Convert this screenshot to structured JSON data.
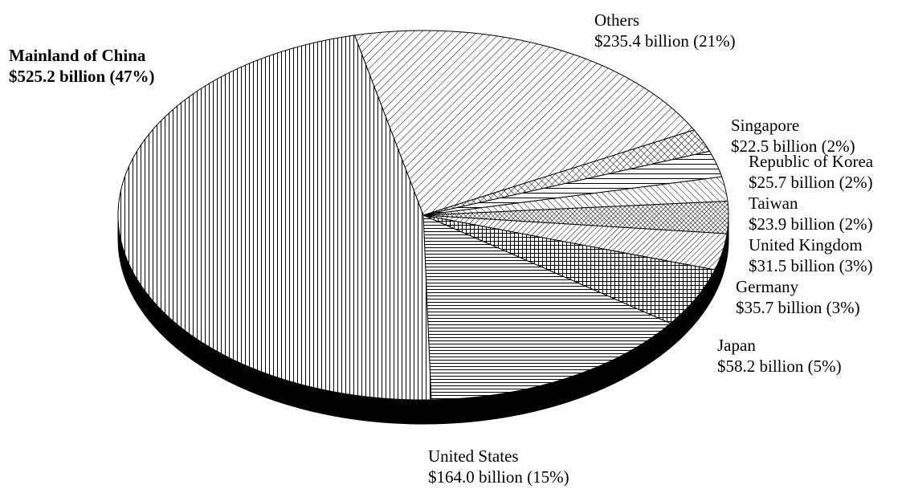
{
  "chart_data": {
    "type": "pie",
    "style": "3d-exploded-none",
    "slices": [
      {
        "label": "Others",
        "value": 235.4,
        "value_text": "$235.4 billion (21%)",
        "percent": 21,
        "pattern": "diag-fwd"
      },
      {
        "label": "Singapore",
        "value": 22.5,
        "value_text": "$22.5 billion (2%)",
        "percent": 2,
        "pattern": "crosshatch"
      },
      {
        "label": "Republic of Korea",
        "value": 25.7,
        "value_text": "$25.7 billion (2%)",
        "percent": 2,
        "pattern": "hlines-wide"
      },
      {
        "label": "Taiwan",
        "value": 23.9,
        "value_text": "$23.9 billion (2%)",
        "percent": 2,
        "pattern": "diag-back"
      },
      {
        "label": "United Kingdom",
        "value": 31.5,
        "value_text": "$31.5 billion (3%)",
        "percent": 3,
        "pattern": "crosshatch-dense"
      },
      {
        "label": "Germany",
        "value": 35.7,
        "value_text": "$35.7 billion (3%)",
        "percent": 3,
        "pattern": "diag-fwd-dense"
      },
      {
        "label": "Japan",
        "value": 58.2,
        "value_text": "$58.2 billion (5%)",
        "percent": 5,
        "pattern": "grid"
      },
      {
        "label": "United States",
        "value": 164.0,
        "value_text": "$164.0 billion (15%)",
        "percent": 15,
        "pattern": "hlines"
      },
      {
        "label": "Mainland of China",
        "value": 525.2,
        "value_text": "$525.2 billion (47%)",
        "percent": 47,
        "pattern": "vlines",
        "bold": true
      }
    ]
  }
}
